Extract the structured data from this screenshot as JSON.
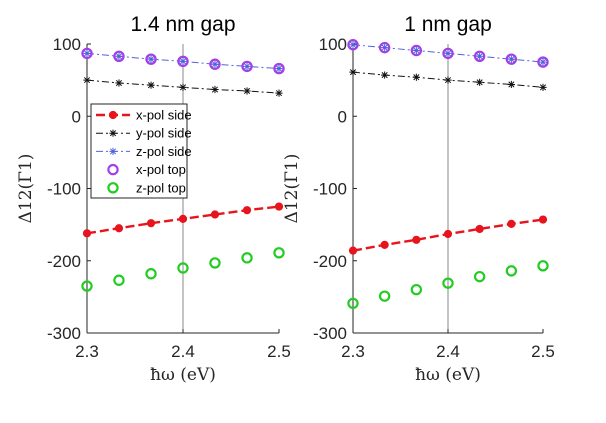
{
  "chart_data": [
    {
      "type": "line",
      "title": "1.4 nm gap",
      "xlabel": "ħω (eV)",
      "ylabel": "Δ12(Γ1)",
      "xlim": [
        2.3,
        2.5
      ],
      "ylim": [
        -300,
        100
      ],
      "xticks": [
        "2.3",
        "2.4",
        "2.5"
      ],
      "yticks": [
        "100",
        "0",
        "-100",
        "-200",
        "-300"
      ],
      "reference_line_x": 2.4,
      "x": [
        2.3,
        2.3333,
        2.3667,
        2.4,
        2.4333,
        2.4667,
        2.5
      ],
      "series": [
        {
          "name": "x-pol side",
          "values": [
            -162,
            -155,
            -148,
            -142,
            -136,
            -130,
            -125
          ]
        },
        {
          "name": "y-pol side",
          "values": [
            50,
            46,
            43,
            40,
            37,
            35,
            32
          ]
        },
        {
          "name": "z-pol side",
          "values": [
            87,
            83,
            79,
            76,
            72,
            69,
            66
          ]
        },
        {
          "name": "x-pol top",
          "values": [
            87,
            83,
            79,
            76,
            72,
            69,
            66
          ]
        },
        {
          "name": "z-pol top",
          "values": [
            -235,
            -227,
            -218,
            -210,
            -203,
            -196,
            -189
          ]
        }
      ]
    },
    {
      "type": "line",
      "title": "1 nm gap",
      "xlabel": "ħω (eV)",
      "ylabel": "Δ12(Γ1)",
      "xlim": [
        2.3,
        2.5
      ],
      "ylim": [
        -300,
        100
      ],
      "xticks": [
        "2.3",
        "2.4",
        "2.5"
      ],
      "yticks": [
        "100",
        "0",
        "-100",
        "-200",
        "-300"
      ],
      "reference_line_x": 2.4,
      "x": [
        2.3,
        2.3333,
        2.3667,
        2.4,
        2.4333,
        2.4667,
        2.5
      ],
      "series": [
        {
          "name": "x-pol side",
          "values": [
            -186,
            -178,
            -171,
            -163,
            -156,
            -149,
            -143
          ]
        },
        {
          "name": "y-pol side",
          "values": [
            61,
            57,
            54,
            50,
            47,
            44,
            40
          ]
        },
        {
          "name": "z-pol side",
          "values": [
            99,
            95,
            91,
            87,
            83,
            79,
            75
          ]
        },
        {
          "name": "x-pol top",
          "values": [
            99,
            95,
            91,
            87,
            83,
            79,
            75
          ]
        },
        {
          "name": "z-pol top",
          "values": [
            -259,
            -249,
            -240,
            -231,
            -222,
            -214,
            -207
          ]
        }
      ]
    }
  ],
  "legend": {
    "placement": "upper-left of first panel",
    "entries": [
      "x-pol side",
      "y-pol side",
      "z-pol side",
      "x-pol top",
      "z-pol top"
    ]
  },
  "colors": {
    "x_pol_side": "#e8141d",
    "y_pol_side": "#111111",
    "z_pol_side": "#4e64d8",
    "x_pol_top": "#a040e8",
    "z_pol_top": "#22cc22",
    "axis": "#262626",
    "reference_line": "#888888"
  }
}
